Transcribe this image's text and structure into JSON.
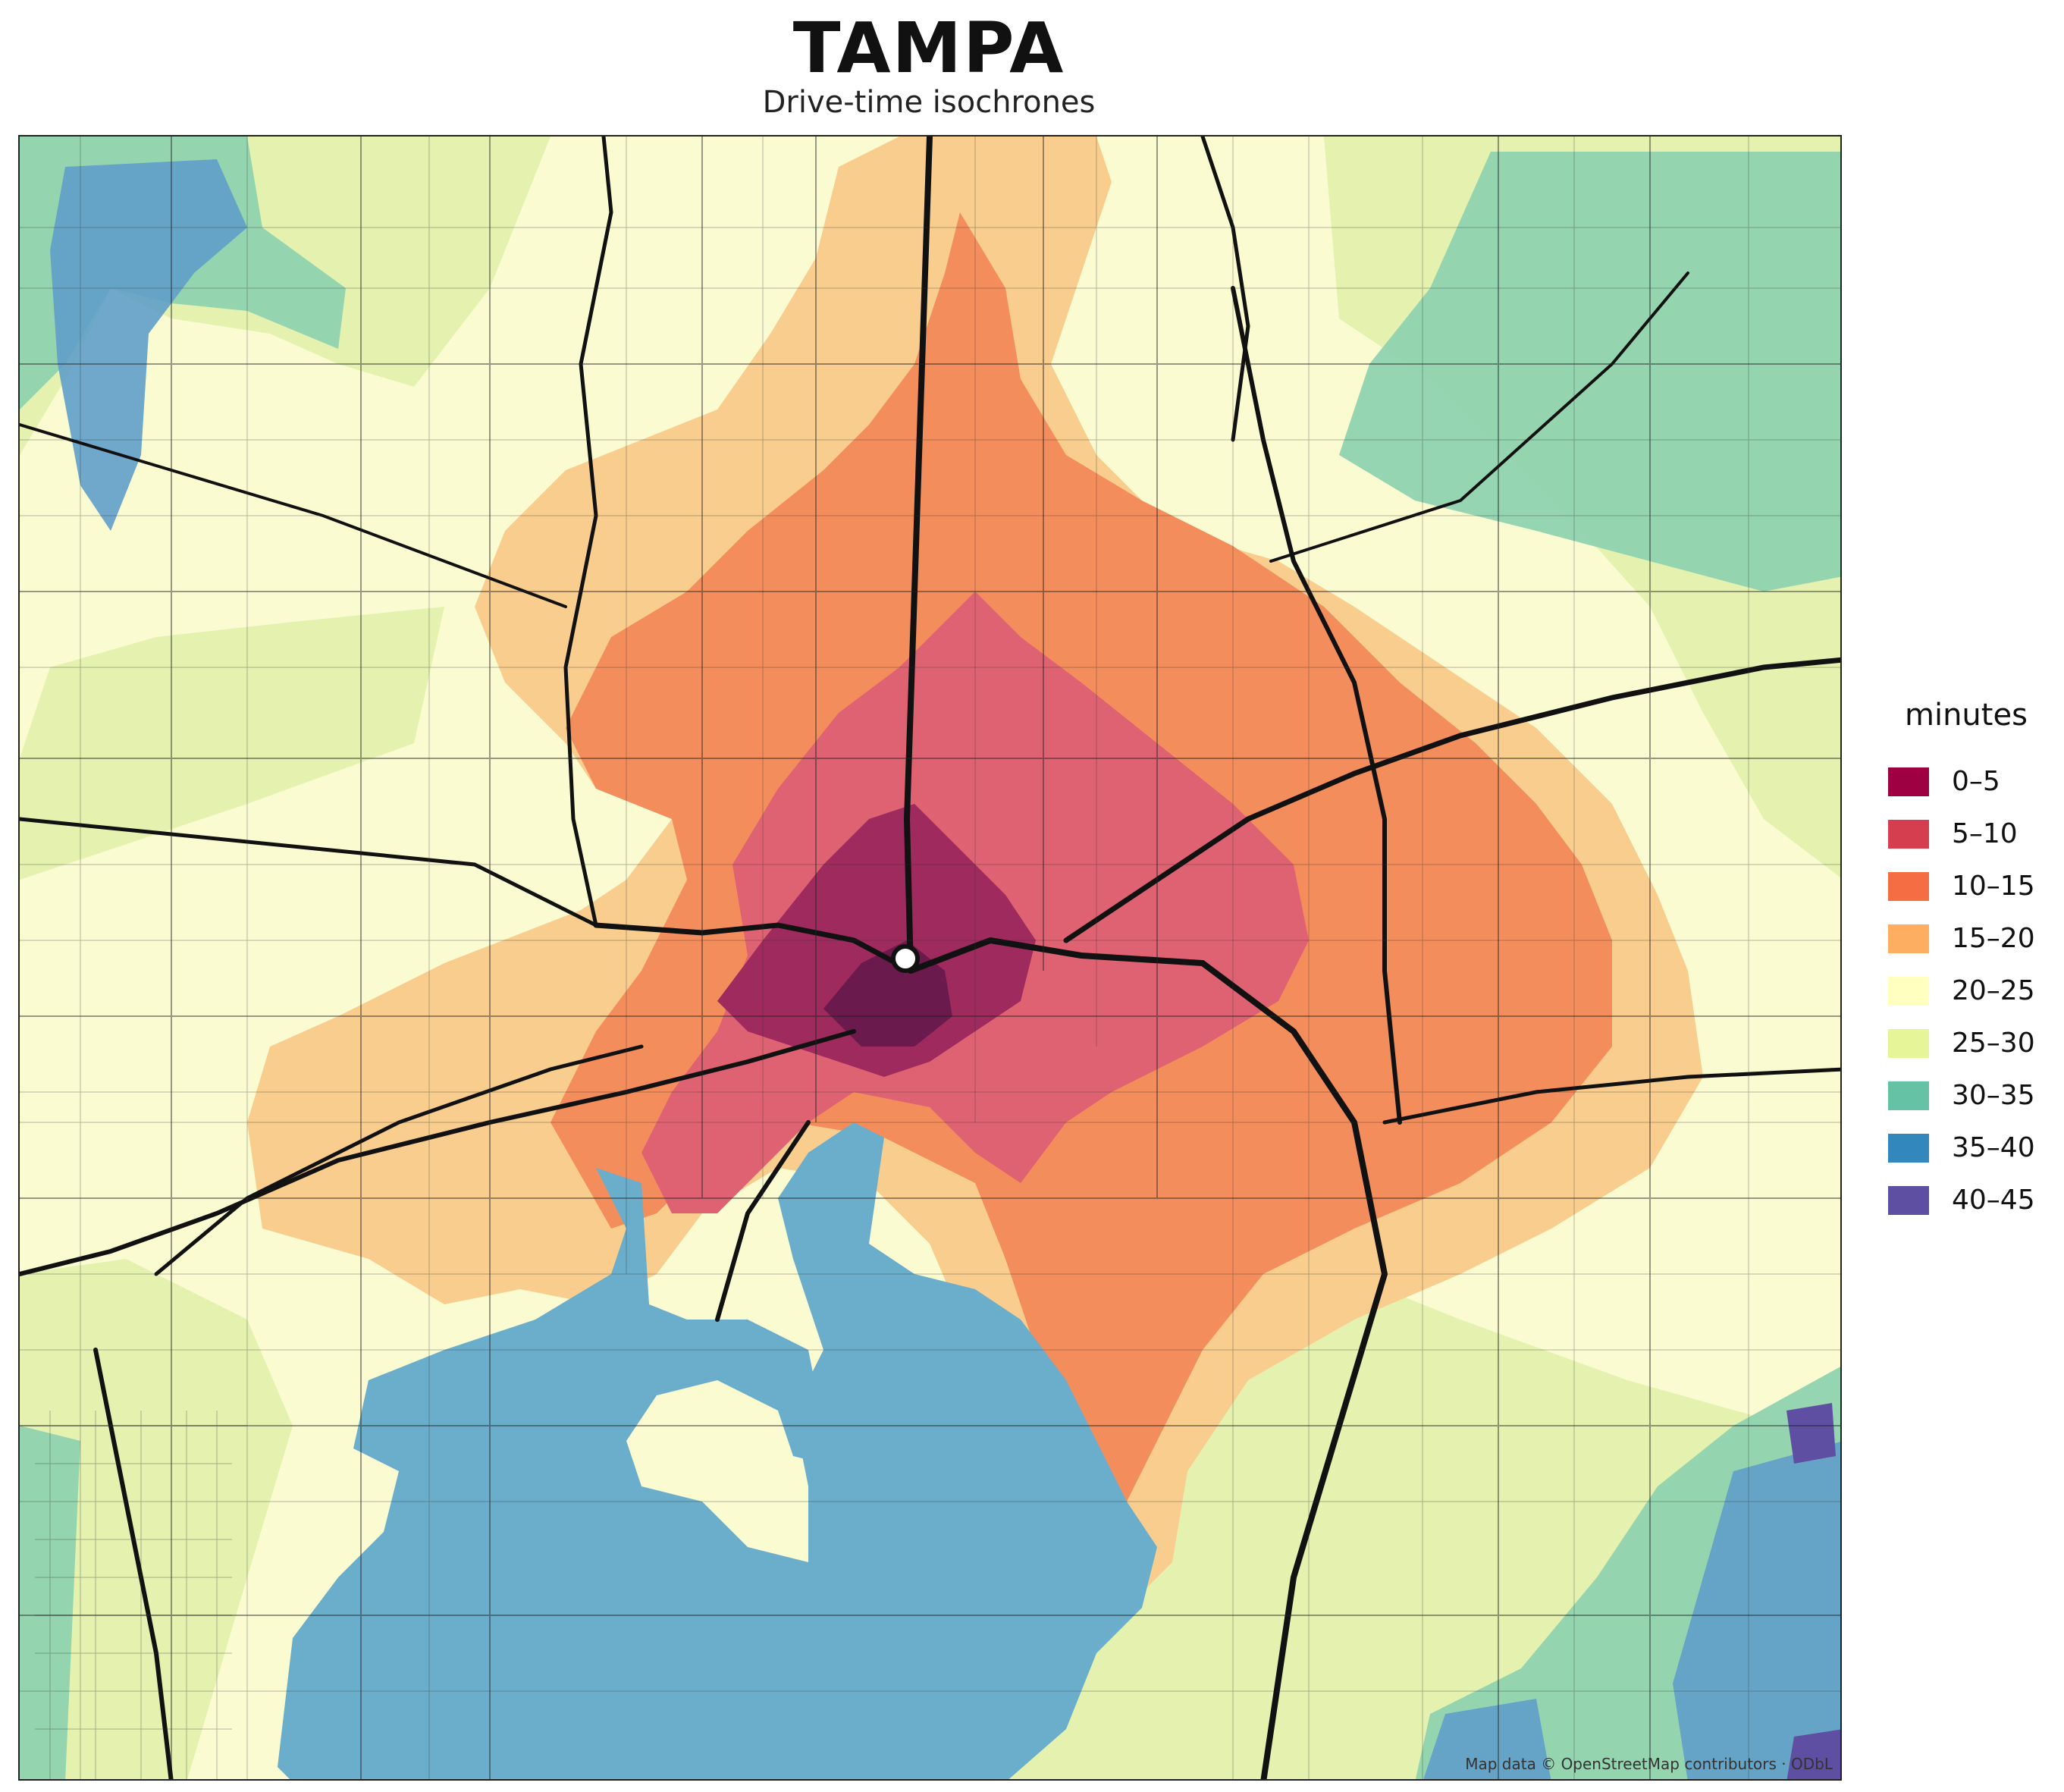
{
  "header": {
    "title": "TAMPA",
    "subtitle": "Drive-time isochrones"
  },
  "legend": {
    "title": "minutes",
    "items": [
      {
        "label": "0–5",
        "color": "#9e0142"
      },
      {
        "label": "5–10",
        "color": "#d53e4f"
      },
      {
        "label": "10–15",
        "color": "#f46d43"
      },
      {
        "label": "15–20",
        "color": "#fdae61"
      },
      {
        "label": "20–25",
        "color": "#ffffbf"
      },
      {
        "label": "25–30",
        "color": "#e6f598"
      },
      {
        "label": "30–35",
        "color": "#66c2a5"
      },
      {
        "label": "35–40",
        "color": "#3288bd"
      },
      {
        "label": "40–45",
        "color": "#5e4fa2"
      }
    ]
  },
  "map": {
    "attribution": "Map data © OpenStreetMap contributors · ODbL",
    "water_color": "#6aaecb",
    "origin_marker": "circle-marker-icon"
  }
}
